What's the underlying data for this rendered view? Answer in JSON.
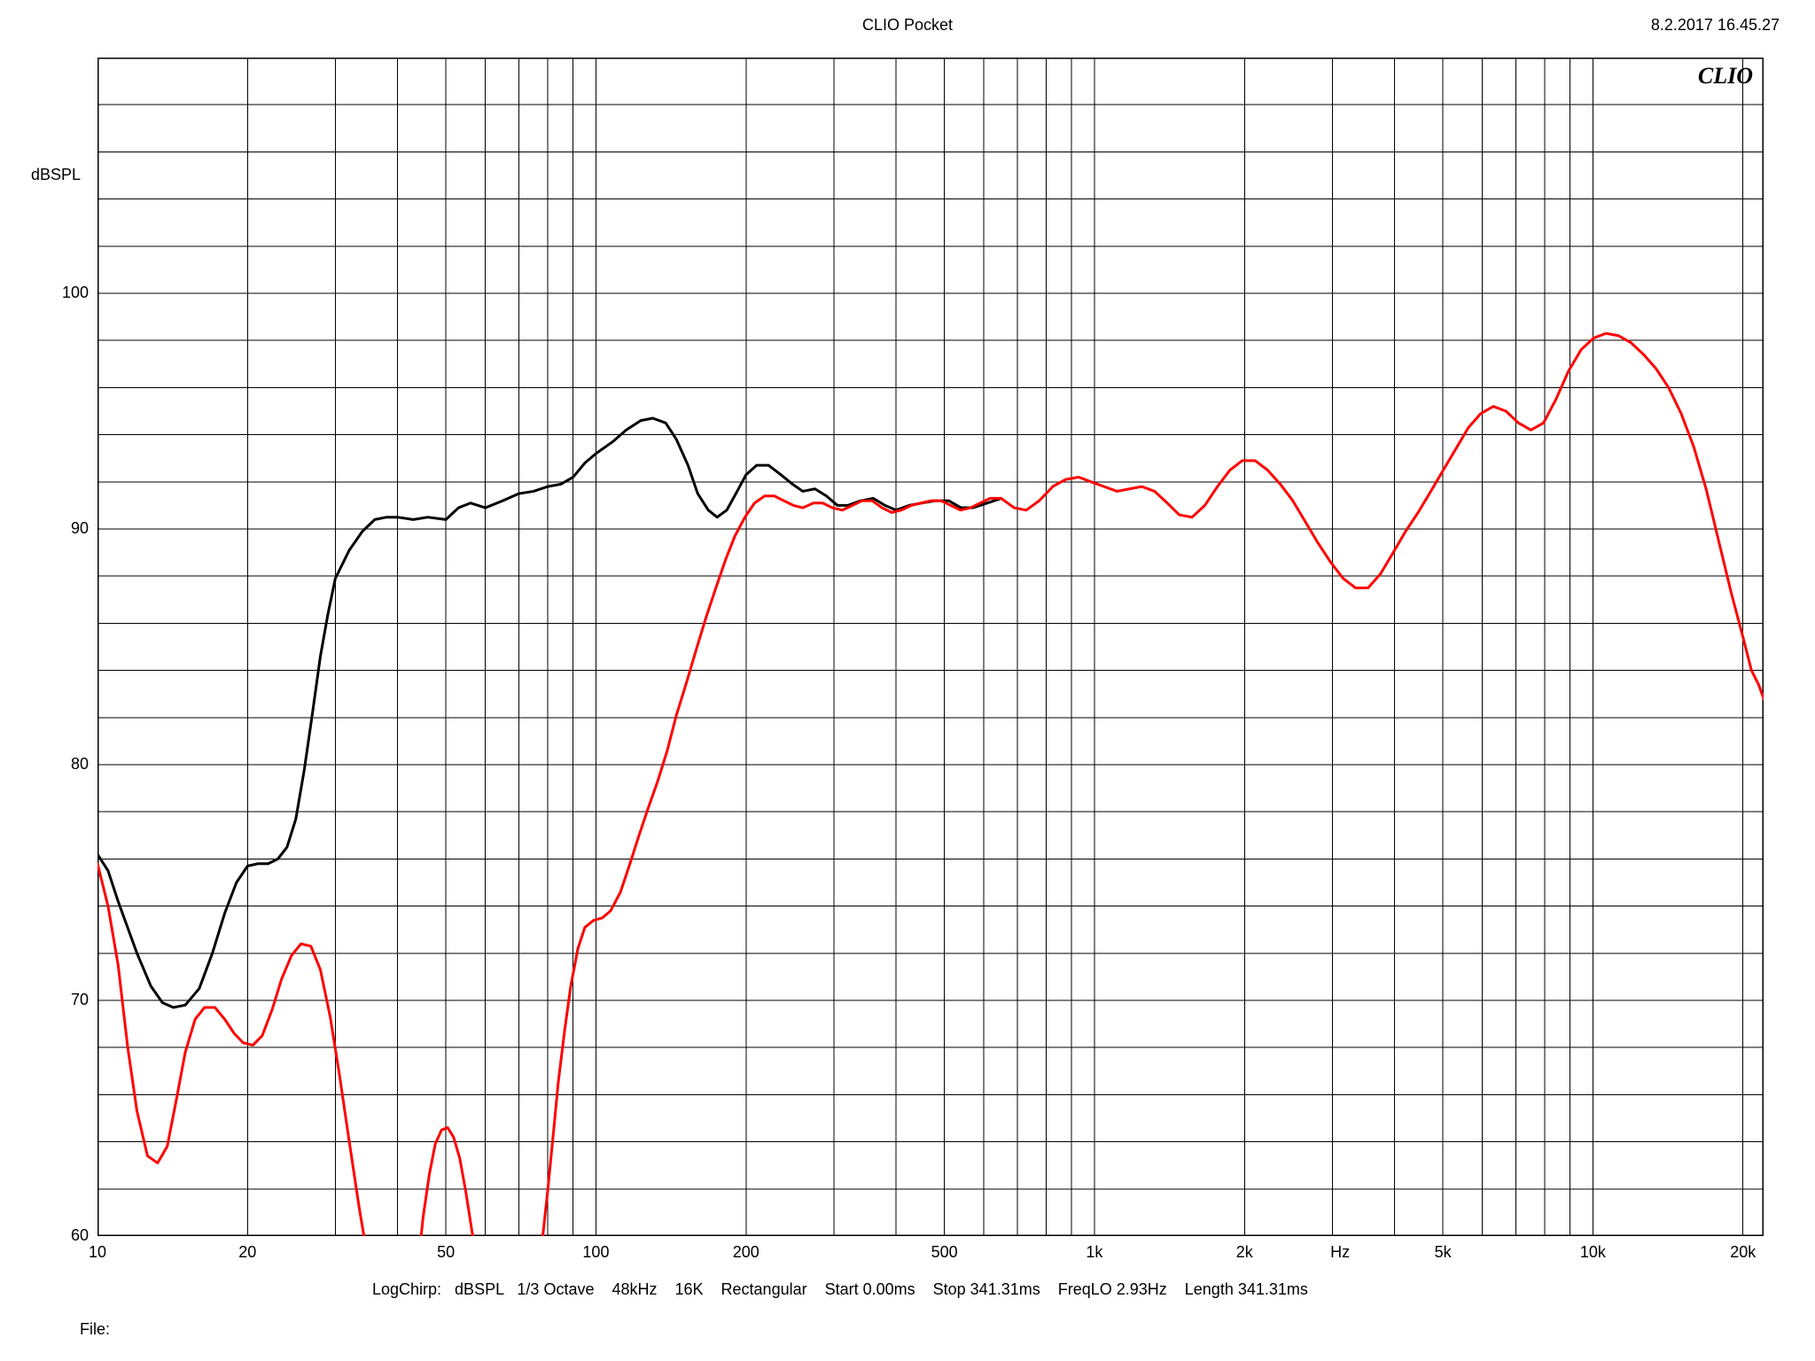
{
  "title": "CLIO Pocket",
  "timestamp": "8.2.2017 16.45.27",
  "watermark": "CLIO",
  "file_label": "File:",
  "bottom_info": "LogChirp:   dBSPL   1/3 Octave    48kHz    16K    Rectangular    Start 0.00ms    Stop 341.31ms    FreqLO 2.93Hz    Length 341.31ms",
  "chart": {
    "type": "line",
    "background_color": "#ffffff",
    "grid_color": "#000000",
    "grid_weight_major": 1,
    "grid_weight_minor": 1,
    "border_color": "#000000",
    "y_axis": {
      "unit": "dBSPL",
      "min": 60,
      "max": 110,
      "ticks": [
        60,
        70,
        80,
        90,
        100,
        110
      ],
      "label_hidden_value": 110,
      "minor_per_major": 4
    },
    "x_axis": {
      "unit": "Hz",
      "scale": "log",
      "min": 10,
      "max": 22000,
      "major_ticks": [
        10,
        20,
        50,
        100,
        200,
        500,
        1000,
        2000,
        5000,
        10000,
        20000
      ],
      "major_labels": [
        "10",
        "20",
        "50",
        "100",
        "200",
        "500",
        "1k",
        "2k",
        "5k",
        "10k",
        "20k"
      ],
      "unit_label_after_tick": 2000,
      "decade_lines": [
        10,
        20,
        30,
        40,
        50,
        60,
        70,
        80,
        90,
        100,
        200,
        300,
        400,
        500,
        600,
        700,
        800,
        900,
        1000,
        2000,
        3000,
        4000,
        5000,
        6000,
        7000,
        8000,
        9000,
        10000,
        20000
      ]
    },
    "series": [
      {
        "name": "black",
        "color": "#000000",
        "width": 3,
        "points": [
          [
            10,
            76.2
          ],
          [
            10.5,
            75.5
          ],
          [
            11,
            74.2
          ],
          [
            12,
            72.0
          ],
          [
            12.8,
            70.6
          ],
          [
            13.5,
            69.9
          ],
          [
            14.2,
            69.7
          ],
          [
            15,
            69.8
          ],
          [
            16,
            70.5
          ],
          [
            17,
            72.0
          ],
          [
            18,
            73.7
          ],
          [
            19,
            75.0
          ],
          [
            20,
            75.7
          ],
          [
            21,
            75.8
          ],
          [
            22,
            75.8
          ],
          [
            23,
            76.0
          ],
          [
            24,
            76.5
          ],
          [
            25,
            77.7
          ],
          [
            26,
            79.8
          ],
          [
            27,
            82.2
          ],
          [
            28,
            84.6
          ],
          [
            29,
            86.4
          ],
          [
            30,
            87.9
          ],
          [
            32,
            89.1
          ],
          [
            34,
            89.9
          ],
          [
            36,
            90.4
          ],
          [
            38,
            90.5
          ],
          [
            40,
            90.5
          ],
          [
            43,
            90.4
          ],
          [
            46,
            90.5
          ],
          [
            50,
            90.4
          ],
          [
            53,
            90.9
          ],
          [
            56,
            91.1
          ],
          [
            60,
            90.9
          ],
          [
            65,
            91.2
          ],
          [
            70,
            91.5
          ],
          [
            75,
            91.6
          ],
          [
            80,
            91.8
          ],
          [
            85,
            91.9
          ],
          [
            90,
            92.2
          ],
          [
            95,
            92.8
          ],
          [
            100,
            93.2
          ],
          [
            108,
            93.7
          ],
          [
            115,
            94.2
          ],
          [
            123,
            94.6
          ],
          [
            130,
            94.7
          ],
          [
            138,
            94.5
          ],
          [
            145,
            93.8
          ],
          [
            153,
            92.7
          ],
          [
            160,
            91.5
          ],
          [
            168,
            90.8
          ],
          [
            175,
            90.5
          ],
          [
            183,
            90.8
          ],
          [
            192,
            91.6
          ],
          [
            200,
            92.3
          ],
          [
            210,
            92.7
          ],
          [
            222,
            92.7
          ],
          [
            235,
            92.3
          ],
          [
            248,
            91.9
          ],
          [
            260,
            91.6
          ],
          [
            275,
            91.7
          ],
          [
            290,
            91.4
          ],
          [
            305,
            91.0
          ],
          [
            320,
            91.0
          ],
          [
            340,
            91.2
          ],
          [
            360,
            91.3
          ],
          [
            380,
            91.0
          ],
          [
            400,
            90.8
          ],
          [
            425,
            91.0
          ],
          [
            450,
            91.1
          ],
          [
            480,
            91.2
          ],
          [
            510,
            91.2
          ],
          [
            540,
            90.9
          ],
          [
            570,
            90.9
          ],
          [
            610,
            91.1
          ],
          [
            650,
            91.3
          ]
        ]
      },
      {
        "name": "red",
        "color": "#ff0000",
        "width": 3,
        "points": [
          [
            10,
            75.8
          ],
          [
            10.5,
            74.0
          ],
          [
            11,
            71.5
          ],
          [
            11.5,
            68.0
          ],
          [
            12,
            65.3
          ],
          [
            12.6,
            63.4
          ],
          [
            13.2,
            63.1
          ],
          [
            13.8,
            63.8
          ],
          [
            14.4,
            65.8
          ],
          [
            15,
            67.8
          ],
          [
            15.7,
            69.2
          ],
          [
            16.4,
            69.7
          ],
          [
            17.2,
            69.7
          ],
          [
            18.0,
            69.2
          ],
          [
            18.8,
            68.6
          ],
          [
            19.6,
            68.2
          ],
          [
            20.5,
            68.1
          ],
          [
            21.4,
            68.5
          ],
          [
            22.4,
            69.6
          ],
          [
            23.4,
            70.9
          ],
          [
            24.5,
            71.9
          ],
          [
            25.6,
            72.4
          ],
          [
            26.8,
            72.3
          ],
          [
            28.0,
            71.3
          ],
          [
            29.3,
            69.3
          ],
          [
            30.6,
            66.8
          ],
          [
            32.0,
            64.0
          ],
          [
            33.5,
            61.2
          ],
          [
            35.0,
            58.8
          ],
          [
            44.0,
            58.8
          ],
          [
            45.0,
            60.8
          ],
          [
            46.3,
            62.6
          ],
          [
            47.6,
            63.9
          ],
          [
            49.0,
            64.5
          ],
          [
            50.4,
            64.6
          ],
          [
            51.8,
            64.2
          ],
          [
            53.3,
            63.3
          ],
          [
            54.8,
            61.9
          ],
          [
            56.4,
            60.2
          ],
          [
            58.0,
            58.8
          ],
          [
            77.0,
            58.8
          ],
          [
            78.5,
            60.3
          ],
          [
            80.0,
            61.9
          ],
          [
            82.0,
            64.2
          ],
          [
            84.0,
            66.5
          ],
          [
            86.5,
            68.7
          ],
          [
            89.0,
            70.6
          ],
          [
            92.0,
            72.2
          ],
          [
            95.0,
            73.1
          ],
          [
            99.0,
            73.4
          ],
          [
            103.0,
            73.5
          ],
          [
            107.0,
            73.8
          ],
          [
            112.0,
            74.6
          ],
          [
            117.0,
            75.8
          ],
          [
            122.0,
            77.0
          ],
          [
            127.0,
            78.1
          ],
          [
            133.0,
            79.3
          ],
          [
            139.0,
            80.6
          ],
          [
            145.0,
            82.1
          ],
          [
            152.0,
            83.5
          ],
          [
            159.0,
            84.9
          ],
          [
            166.0,
            86.2
          ],
          [
            174.0,
            87.5
          ],
          [
            182.0,
            88.7
          ],
          [
            190.0,
            89.7
          ],
          [
            199.0,
            90.5
          ],
          [
            208.0,
            91.1
          ],
          [
            218.0,
            91.4
          ],
          [
            228.0,
            91.4
          ],
          [
            238.0,
            91.2
          ],
          [
            249.0,
            91.0
          ],
          [
            260.0,
            90.9
          ],
          [
            273.0,
            91.1
          ],
          [
            285.0,
            91.1
          ],
          [
            298.0,
            90.9
          ],
          [
            312.0,
            90.8
          ],
          [
            327.0,
            91.0
          ],
          [
            342.0,
            91.2
          ],
          [
            358.0,
            91.2
          ],
          [
            375.0,
            90.9
          ],
          [
            392.0,
            90.7
          ],
          [
            410.0,
            90.8
          ],
          [
            429.0,
            91.0
          ],
          [
            449.0,
            91.1
          ],
          [
            470.0,
            91.2
          ],
          [
            492.0,
            91.2
          ],
          [
            515.0,
            91.0
          ],
          [
            539.0,
            90.8
          ],
          [
            564.0,
            90.9
          ],
          [
            590.0,
            91.1
          ],
          [
            618.0,
            91.3
          ],
          [
            650.0,
            91.3
          ],
          [
            690.0,
            90.9
          ],
          [
            730.0,
            90.8
          ],
          [
            775.0,
            91.2
          ],
          [
            825.0,
            91.8
          ],
          [
            875.0,
            92.1
          ],
          [
            930.0,
            92.2
          ],
          [
            985.0,
            92.0
          ],
          [
            1045.0,
            91.8
          ],
          [
            1110.0,
            91.6
          ],
          [
            1175.0,
            91.7
          ],
          [
            1245.0,
            91.8
          ],
          [
            1320.0,
            91.6
          ],
          [
            1400.0,
            91.1
          ],
          [
            1480.0,
            90.6
          ],
          [
            1570.0,
            90.5
          ],
          [
            1665.0,
            91.0
          ],
          [
            1765.0,
            91.8
          ],
          [
            1870.0,
            92.5
          ],
          [
            1980.0,
            92.9
          ],
          [
            2100.0,
            92.9
          ],
          [
            2225.0,
            92.5
          ],
          [
            2360.0,
            91.9
          ],
          [
            2500.0,
            91.2
          ],
          [
            2650.0,
            90.3
          ],
          [
            2810.0,
            89.4
          ],
          [
            2975.0,
            88.6
          ],
          [
            3155.0,
            87.9
          ],
          [
            3340.0,
            87.5
          ],
          [
            3540.0,
            87.5
          ],
          [
            3750.0,
            88.1
          ],
          [
            3975.0,
            89.0
          ],
          [
            4210.0,
            89.9
          ],
          [
            4460.0,
            90.7
          ],
          [
            4730.0,
            91.6
          ],
          [
            5010.0,
            92.5
          ],
          [
            5310.0,
            93.4
          ],
          [
            5625.0,
            94.3
          ],
          [
            5960.0,
            94.9
          ],
          [
            6315.0,
            95.2
          ],
          [
            6690.0,
            95.0
          ],
          [
            7090.0,
            94.5
          ],
          [
            7510.0,
            94.2
          ],
          [
            7960.0,
            94.5
          ],
          [
            8430.0,
            95.5
          ],
          [
            8935.0,
            96.7
          ],
          [
            9465.0,
            97.6
          ],
          [
            10030.0,
            98.1
          ],
          [
            10625.0,
            98.3
          ],
          [
            11260.0,
            98.2
          ],
          [
            11930.0,
            97.9
          ],
          [
            12640.0,
            97.4
          ],
          [
            13390.0,
            96.8
          ],
          [
            14185.0,
            96.0
          ],
          [
            15030.0,
            94.9
          ],
          [
            15925.0,
            93.5
          ],
          [
            16870.0,
            91.7
          ],
          [
            17875.0,
            89.5
          ],
          [
            18940.0,
            87.3
          ],
          [
            20065.0,
            85.3
          ],
          [
            20800.0,
            84.0
          ],
          [
            21500.0,
            83.4
          ],
          [
            22000.0,
            82.8
          ]
        ]
      }
    ]
  }
}
